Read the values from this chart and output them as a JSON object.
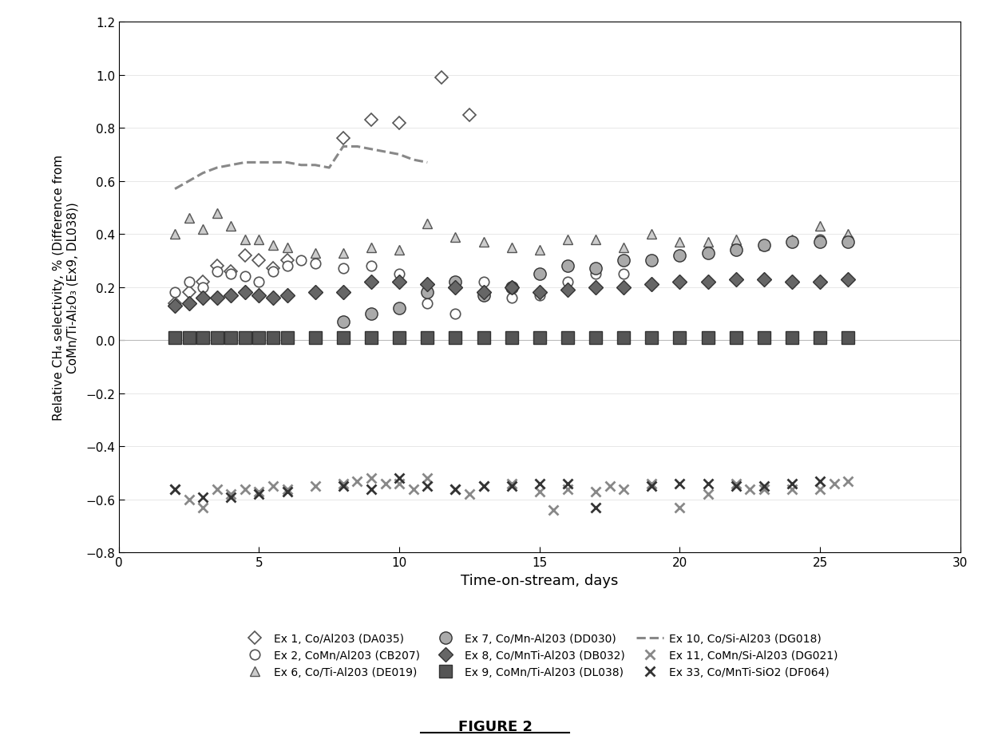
{
  "xlabel": "Time-on-stream, days",
  "ylabel": "Relative CH₄ selectivity, % (Difference from\nCoMn/Ti-Al₂O₃ (Ex9, DL038))",
  "figure_caption": "FIGURE 2",
  "xlim": [
    0,
    30
  ],
  "ylim": [
    -0.8,
    1.2
  ],
  "xticks": [
    0,
    5,
    10,
    15,
    20,
    25,
    30
  ],
  "yticks": [
    -0.8,
    -0.6,
    -0.4,
    -0.2,
    0,
    0.2,
    0.4,
    0.6,
    0.8,
    1.0,
    1.2
  ],
  "background_color": "#ffffff",
  "ex1_x": [
    2.0,
    2.5,
    3.0,
    3.5,
    4.0,
    4.5,
    5.0,
    5.5,
    6.0,
    8.0,
    9.0,
    10.0,
    11.5,
    12.5
  ],
  "ex1_y": [
    0.14,
    0.18,
    0.22,
    0.28,
    0.26,
    0.32,
    0.3,
    0.27,
    0.3,
    0.76,
    0.83,
    0.82,
    0.99,
    0.85
  ],
  "ex2_x": [
    2.0,
    2.5,
    3.0,
    3.5,
    4.0,
    4.5,
    5.0,
    5.5,
    6.0,
    6.5,
    7.0,
    8.0,
    9.0,
    10.0,
    11.0,
    12.0,
    13.0,
    14.0,
    15.0,
    16.0,
    17.0,
    18.0,
    19.0,
    20.0,
    21.0,
    22.0,
    23.0,
    24.0,
    25.0,
    26.0
  ],
  "ex2_y": [
    0.18,
    0.22,
    0.2,
    0.26,
    0.25,
    0.24,
    0.22,
    0.26,
    0.28,
    0.3,
    0.29,
    0.27,
    0.28,
    0.25,
    0.14,
    0.1,
    0.22,
    0.16,
    0.17,
    0.22,
    0.25,
    0.25,
    0.3,
    0.32,
    0.33,
    0.35,
    0.36,
    0.37,
    0.38,
    0.38
  ],
  "ex6_x": [
    2.0,
    2.5,
    3.0,
    3.5,
    4.0,
    4.5,
    5.0,
    5.5,
    6.0,
    7.0,
    8.0,
    9.0,
    10.0,
    11.0,
    12.0,
    13.0,
    14.0,
    15.0,
    16.0,
    17.0,
    18.0,
    19.0,
    20.0,
    21.0,
    22.0,
    23.0,
    24.0,
    25.0,
    26.0
  ],
  "ex6_y": [
    0.4,
    0.46,
    0.42,
    0.48,
    0.43,
    0.38,
    0.38,
    0.36,
    0.35,
    0.33,
    0.33,
    0.35,
    0.34,
    0.44,
    0.39,
    0.37,
    0.35,
    0.34,
    0.38,
    0.38,
    0.35,
    0.4,
    0.37,
    0.37,
    0.38,
    0.36,
    0.38,
    0.43,
    0.4
  ],
  "ex7_x": [
    8.0,
    9.0,
    10.0,
    11.0,
    12.0,
    13.0,
    14.0,
    15.0,
    16.0,
    17.0,
    18.0,
    19.0,
    20.0,
    21.0,
    22.0,
    23.0,
    24.0,
    25.0,
    26.0
  ],
  "ex7_y": [
    0.07,
    0.1,
    0.12,
    0.18,
    0.22,
    0.17,
    0.2,
    0.25,
    0.28,
    0.27,
    0.3,
    0.3,
    0.32,
    0.33,
    0.34,
    0.36,
    0.37,
    0.37,
    0.37
  ],
  "ex8_x": [
    2.0,
    2.5,
    3.0,
    3.5,
    4.0,
    4.5,
    5.0,
    5.5,
    6.0,
    7.0,
    8.0,
    9.0,
    10.0,
    11.0,
    12.0,
    13.0,
    14.0,
    15.0,
    16.0,
    17.0,
    18.0,
    19.0,
    20.0,
    21.0,
    22.0,
    23.0,
    24.0,
    25.0,
    26.0
  ],
  "ex8_y": [
    0.13,
    0.14,
    0.16,
    0.16,
    0.17,
    0.18,
    0.17,
    0.16,
    0.17,
    0.18,
    0.18,
    0.22,
    0.22,
    0.21,
    0.2,
    0.18,
    0.2,
    0.18,
    0.19,
    0.2,
    0.2,
    0.21,
    0.22,
    0.22,
    0.23,
    0.23,
    0.22,
    0.22,
    0.23
  ],
  "ex9_x": [
    2.0,
    2.5,
    3.0,
    3.5,
    4.0,
    4.5,
    5.0,
    5.5,
    6.0,
    7.0,
    8.0,
    9.0,
    10.0,
    11.0,
    12.0,
    13.0,
    14.0,
    15.0,
    16.0,
    17.0,
    18.0,
    19.0,
    20.0,
    21.0,
    22.0,
    23.0,
    24.0,
    25.0,
    26.0
  ],
  "ex9_y": [
    0.01,
    0.01,
    0.01,
    0.01,
    0.01,
    0.01,
    0.01,
    0.01,
    0.01,
    0.01,
    0.01,
    0.01,
    0.01,
    0.01,
    0.01,
    0.01,
    0.01,
    0.01,
    0.01,
    0.01,
    0.01,
    0.01,
    0.01,
    0.01,
    0.01,
    0.01,
    0.01,
    0.01,
    0.01
  ],
  "ex10_x": [
    2.0,
    2.5,
    3.0,
    3.5,
    4.0,
    4.5,
    5.0,
    5.5,
    6.0,
    6.5,
    7.0,
    7.5,
    8.0,
    8.5,
    9.0,
    9.5,
    10.0,
    10.5,
    11.0
  ],
  "ex10_y": [
    0.57,
    0.6,
    0.63,
    0.65,
    0.66,
    0.67,
    0.67,
    0.67,
    0.67,
    0.66,
    0.66,
    0.65,
    0.73,
    0.73,
    0.72,
    0.71,
    0.7,
    0.68,
    0.67
  ],
  "ex11_x": [
    2.0,
    2.5,
    3.0,
    3.5,
    4.0,
    4.5,
    5.0,
    5.5,
    6.0,
    7.0,
    8.0,
    8.5,
    9.0,
    9.5,
    10.0,
    10.5,
    11.0,
    12.0,
    12.5,
    13.0,
    14.0,
    15.0,
    15.5,
    16.0,
    17.0,
    17.5,
    18.0,
    19.0,
    20.0,
    21.0,
    22.0,
    22.5,
    23.0,
    24.0,
    25.0,
    25.5,
    26.0
  ],
  "ex11_y": [
    -0.56,
    -0.6,
    -0.63,
    -0.56,
    -0.58,
    -0.56,
    -0.57,
    -0.55,
    -0.56,
    -0.55,
    -0.54,
    -0.53,
    -0.52,
    -0.54,
    -0.54,
    -0.56,
    -0.52,
    -0.56,
    -0.58,
    -0.55,
    -0.54,
    -0.57,
    -0.64,
    -0.56,
    -0.57,
    -0.55,
    -0.56,
    -0.54,
    -0.63,
    -0.58,
    -0.54,
    -0.56,
    -0.56,
    -0.56,
    -0.56,
    -0.54,
    -0.53
  ],
  "ex33_x": [
    2.0,
    3.0,
    4.0,
    5.0,
    6.0,
    8.0,
    9.0,
    10.0,
    11.0,
    12.0,
    13.0,
    14.0,
    15.0,
    16.0,
    17.0,
    19.0,
    20.0,
    21.0,
    22.0,
    23.0,
    24.0,
    25.0
  ],
  "ex33_y": [
    -0.56,
    -0.59,
    -0.59,
    -0.58,
    -0.57,
    -0.55,
    -0.56,
    -0.52,
    -0.55,
    -0.56,
    -0.55,
    -0.55,
    -0.54,
    -0.54,
    -0.63,
    -0.55,
    -0.54,
    -0.54,
    -0.55,
    -0.55,
    -0.54,
    -0.53
  ],
  "c_open_edge": "#555555",
  "c_med": "#888888",
  "c_dark": "#555555",
  "c_vdark": "#333333",
  "c_tri_face": "#cccccc",
  "c_circle7_face": "#aaaaaa",
  "c_diamond8_face": "#666666",
  "c_square9_face": "#555555"
}
